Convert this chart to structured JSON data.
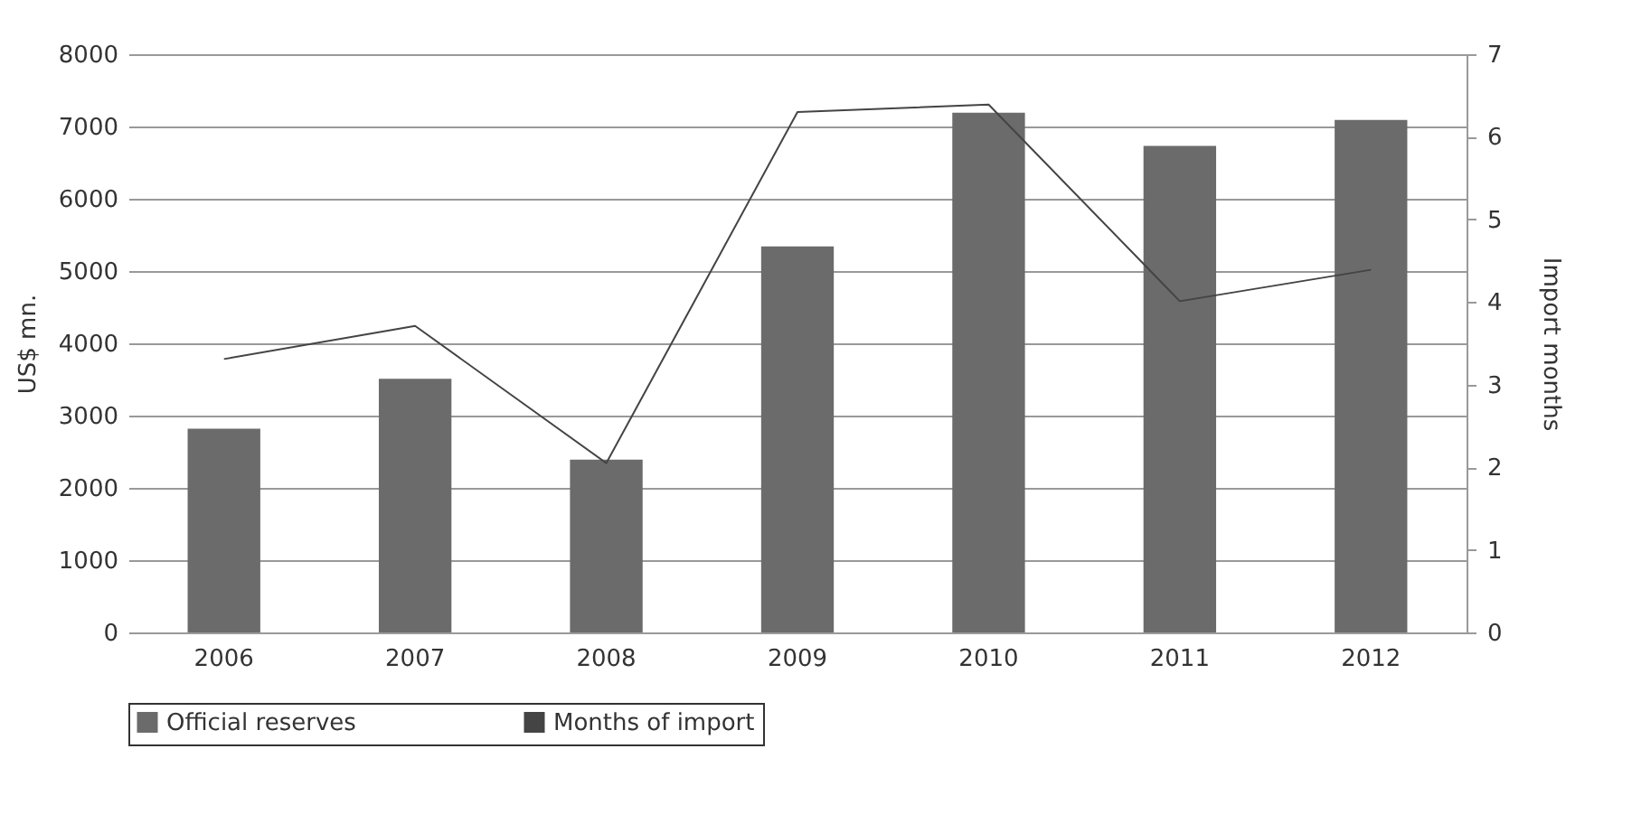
{
  "chart_data": {
    "type": "bar",
    "categories": [
      "2006",
      "2007",
      "2008",
      "2009",
      "2010",
      "2011",
      "2012"
    ],
    "series": [
      {
        "name": "Official reserves",
        "color": "#6b6b6b",
        "values": [
          2820,
          3510,
          2390,
          5340,
          7190,
          6730,
          7090
        ]
      },
      {
        "name": "Months of import",
        "type": "line",
        "axis": "y2",
        "color": "#444444",
        "values": [
          3.31,
          3.71,
          2.05,
          6.3,
          6.39,
          4.01,
          4.39
        ]
      }
    ],
    "ylabel": "US$ mn.",
    "y2label": "Import months",
    "ylim": [
      0,
      8000
    ],
    "yticks": [
      0,
      1000,
      2000,
      3000,
      4000,
      5000,
      6000,
      7000,
      8000
    ],
    "y2lim": [
      0,
      7
    ],
    "y2ticks": [
      0,
      1,
      2,
      3,
      4,
      5,
      6,
      7
    ],
    "grid": "y",
    "legend": "bottom"
  }
}
